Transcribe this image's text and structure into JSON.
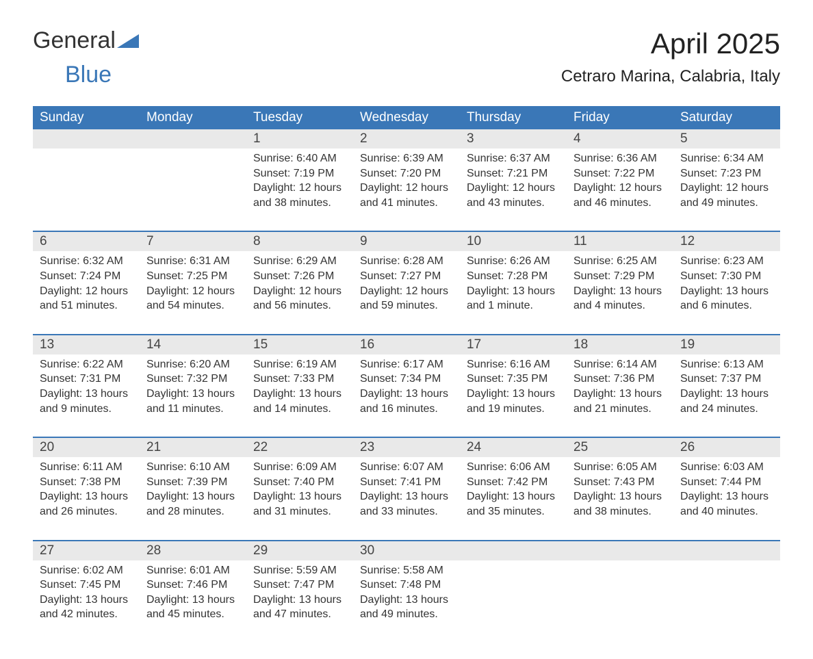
{
  "logo": {
    "text1": "General",
    "text2": "Blue"
  },
  "title": "April 2025",
  "subtitle": "Cetraro Marina, Calabria, Italy",
  "colors": {
    "header_bg": "#3a77b7",
    "header_text": "#ffffff",
    "daynum_bg": "#e9e9e9",
    "week_border": "#3a77b7",
    "page_bg": "#ffffff",
    "text": "#333333",
    "logo_accent": "#3a77b7"
  },
  "typography": {
    "title_fontsize": 42,
    "subtitle_fontsize": 24,
    "dayhead_fontsize": 19,
    "daynum_fontsize": 19,
    "cell_fontsize": 16
  },
  "day_headers": [
    "Sunday",
    "Monday",
    "Tuesday",
    "Wednesday",
    "Thursday",
    "Friday",
    "Saturday"
  ],
  "weeks": [
    {
      "nums": [
        "",
        "",
        "1",
        "2",
        "3",
        "4",
        "5"
      ],
      "cells": [
        {
          "sr": "",
          "ss": "",
          "dl": ""
        },
        {
          "sr": "",
          "ss": "",
          "dl": ""
        },
        {
          "sr": "Sunrise: 6:40 AM",
          "ss": "Sunset: 7:19 PM",
          "dl": "Daylight: 12 hours and 38 minutes."
        },
        {
          "sr": "Sunrise: 6:39 AM",
          "ss": "Sunset: 7:20 PM",
          "dl": "Daylight: 12 hours and 41 minutes."
        },
        {
          "sr": "Sunrise: 6:37 AM",
          "ss": "Sunset: 7:21 PM",
          "dl": "Daylight: 12 hours and 43 minutes."
        },
        {
          "sr": "Sunrise: 6:36 AM",
          "ss": "Sunset: 7:22 PM",
          "dl": "Daylight: 12 hours and 46 minutes."
        },
        {
          "sr": "Sunrise: 6:34 AM",
          "ss": "Sunset: 7:23 PM",
          "dl": "Daylight: 12 hours and 49 minutes."
        }
      ]
    },
    {
      "nums": [
        "6",
        "7",
        "8",
        "9",
        "10",
        "11",
        "12"
      ],
      "cells": [
        {
          "sr": "Sunrise: 6:32 AM",
          "ss": "Sunset: 7:24 PM",
          "dl": "Daylight: 12 hours and 51 minutes."
        },
        {
          "sr": "Sunrise: 6:31 AM",
          "ss": "Sunset: 7:25 PM",
          "dl": "Daylight: 12 hours and 54 minutes."
        },
        {
          "sr": "Sunrise: 6:29 AM",
          "ss": "Sunset: 7:26 PM",
          "dl": "Daylight: 12 hours and 56 minutes."
        },
        {
          "sr": "Sunrise: 6:28 AM",
          "ss": "Sunset: 7:27 PM",
          "dl": "Daylight: 12 hours and 59 minutes."
        },
        {
          "sr": "Sunrise: 6:26 AM",
          "ss": "Sunset: 7:28 PM",
          "dl": "Daylight: 13 hours and 1 minute."
        },
        {
          "sr": "Sunrise: 6:25 AM",
          "ss": "Sunset: 7:29 PM",
          "dl": "Daylight: 13 hours and 4 minutes."
        },
        {
          "sr": "Sunrise: 6:23 AM",
          "ss": "Sunset: 7:30 PM",
          "dl": "Daylight: 13 hours and 6 minutes."
        }
      ]
    },
    {
      "nums": [
        "13",
        "14",
        "15",
        "16",
        "17",
        "18",
        "19"
      ],
      "cells": [
        {
          "sr": "Sunrise: 6:22 AM",
          "ss": "Sunset: 7:31 PM",
          "dl": "Daylight: 13 hours and 9 minutes."
        },
        {
          "sr": "Sunrise: 6:20 AM",
          "ss": "Sunset: 7:32 PM",
          "dl": "Daylight: 13 hours and 11 minutes."
        },
        {
          "sr": "Sunrise: 6:19 AM",
          "ss": "Sunset: 7:33 PM",
          "dl": "Daylight: 13 hours and 14 minutes."
        },
        {
          "sr": "Sunrise: 6:17 AM",
          "ss": "Sunset: 7:34 PM",
          "dl": "Daylight: 13 hours and 16 minutes."
        },
        {
          "sr": "Sunrise: 6:16 AM",
          "ss": "Sunset: 7:35 PM",
          "dl": "Daylight: 13 hours and 19 minutes."
        },
        {
          "sr": "Sunrise: 6:14 AM",
          "ss": "Sunset: 7:36 PM",
          "dl": "Daylight: 13 hours and 21 minutes."
        },
        {
          "sr": "Sunrise: 6:13 AM",
          "ss": "Sunset: 7:37 PM",
          "dl": "Daylight: 13 hours and 24 minutes."
        }
      ]
    },
    {
      "nums": [
        "20",
        "21",
        "22",
        "23",
        "24",
        "25",
        "26"
      ],
      "cells": [
        {
          "sr": "Sunrise: 6:11 AM",
          "ss": "Sunset: 7:38 PM",
          "dl": "Daylight: 13 hours and 26 minutes."
        },
        {
          "sr": "Sunrise: 6:10 AM",
          "ss": "Sunset: 7:39 PM",
          "dl": "Daylight: 13 hours and 28 minutes."
        },
        {
          "sr": "Sunrise: 6:09 AM",
          "ss": "Sunset: 7:40 PM",
          "dl": "Daylight: 13 hours and 31 minutes."
        },
        {
          "sr": "Sunrise: 6:07 AM",
          "ss": "Sunset: 7:41 PM",
          "dl": "Daylight: 13 hours and 33 minutes."
        },
        {
          "sr": "Sunrise: 6:06 AM",
          "ss": "Sunset: 7:42 PM",
          "dl": "Daylight: 13 hours and 35 minutes."
        },
        {
          "sr": "Sunrise: 6:05 AM",
          "ss": "Sunset: 7:43 PM",
          "dl": "Daylight: 13 hours and 38 minutes."
        },
        {
          "sr": "Sunrise: 6:03 AM",
          "ss": "Sunset: 7:44 PM",
          "dl": "Daylight: 13 hours and 40 minutes."
        }
      ]
    },
    {
      "nums": [
        "27",
        "28",
        "29",
        "30",
        "",
        "",
        ""
      ],
      "cells": [
        {
          "sr": "Sunrise: 6:02 AM",
          "ss": "Sunset: 7:45 PM",
          "dl": "Daylight: 13 hours and 42 minutes."
        },
        {
          "sr": "Sunrise: 6:01 AM",
          "ss": "Sunset: 7:46 PM",
          "dl": "Daylight: 13 hours and 45 minutes."
        },
        {
          "sr": "Sunrise: 5:59 AM",
          "ss": "Sunset: 7:47 PM",
          "dl": "Daylight: 13 hours and 47 minutes."
        },
        {
          "sr": "Sunrise: 5:58 AM",
          "ss": "Sunset: 7:48 PM",
          "dl": "Daylight: 13 hours and 49 minutes."
        },
        {
          "sr": "",
          "ss": "",
          "dl": ""
        },
        {
          "sr": "",
          "ss": "",
          "dl": ""
        },
        {
          "sr": "",
          "ss": "",
          "dl": ""
        }
      ]
    }
  ]
}
